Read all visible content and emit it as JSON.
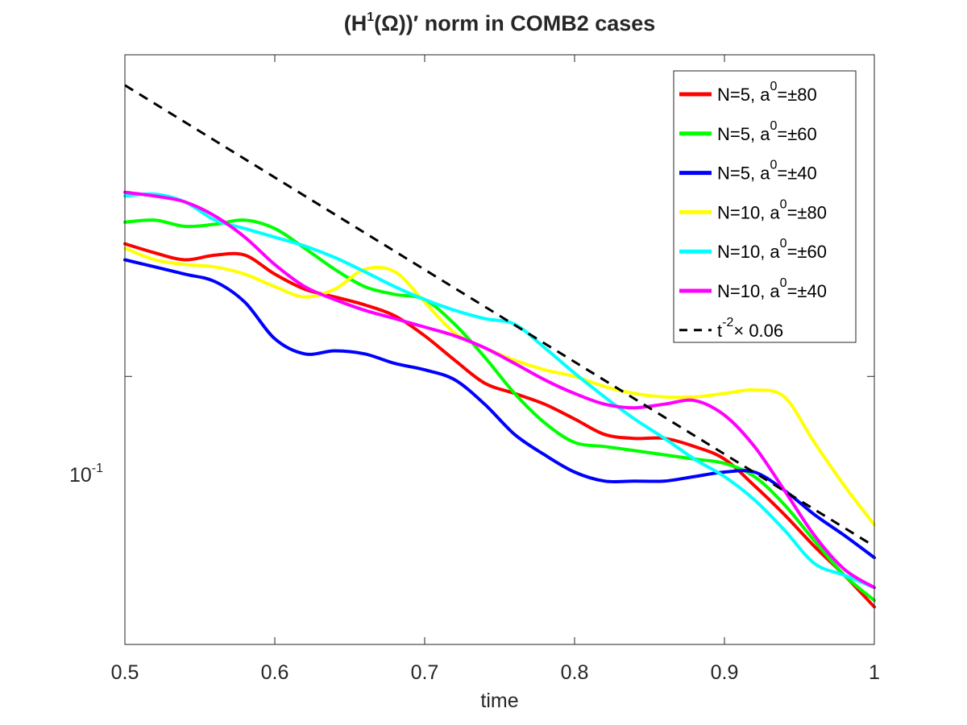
{
  "chart_data": {
    "type": "line",
    "title_parts": {
      "open": "(H",
      "sup": "1",
      "rest": "(Ω))′ norm in COMB2 cases"
    },
    "xlabel": "time",
    "ylabel": "",
    "xlim": [
      0.5,
      1.0
    ],
    "ylim_log10": [
      -1.35,
      -0.58
    ],
    "yscale": "log",
    "x_ticks": [
      0.5,
      0.6,
      0.7,
      0.8,
      0.9,
      1.0
    ],
    "x_tick_labels": [
      "0.5",
      "0.6",
      "0.7",
      "0.8",
      "0.9",
      "1"
    ],
    "y_ticks": [
      0.1
    ],
    "y_tick_label": {
      "base": "10",
      "exp": "-1"
    },
    "legend_position": "top-right",
    "x": [
      0.5,
      0.52,
      0.54,
      0.56,
      0.58,
      0.6,
      0.62,
      0.64,
      0.66,
      0.68,
      0.7,
      0.72,
      0.74,
      0.76,
      0.78,
      0.8,
      0.82,
      0.84,
      0.86,
      0.88,
      0.9,
      0.92,
      0.94,
      0.96,
      0.98,
      1.0
    ],
    "series": [
      {
        "name": "N=5, a⁰=±80",
        "label_pre": "N=5, a",
        "label_sup": "0",
        "label_post": "=±80",
        "color": "#ff0000",
        "style": "solid",
        "values": [
          0.149,
          0.145,
          0.142,
          0.144,
          0.144,
          0.136,
          0.13,
          0.127,
          0.124,
          0.12,
          0.113,
          0.105,
          0.098,
          0.095,
          0.092,
          0.088,
          0.084,
          0.083,
          0.083,
          0.081,
          0.078,
          0.072,
          0.066,
          0.06,
          0.055,
          0.05
        ]
      },
      {
        "name": "N=5, a⁰=±60",
        "label_pre": "N=5, a",
        "label_sup": "0",
        "label_post": "=±60",
        "color": "#00ff00",
        "style": "solid",
        "values": [
          0.159,
          0.16,
          0.157,
          0.158,
          0.16,
          0.156,
          0.147,
          0.138,
          0.131,
          0.128,
          0.126,
          0.117,
          0.106,
          0.095,
          0.087,
          0.082,
          0.081,
          0.08,
          0.079,
          0.078,
          0.077,
          0.074,
          0.068,
          0.061,
          0.055,
          0.051
        ]
      },
      {
        "name": "N=5, a⁰=±40",
        "label_pre": "N=5, a",
        "label_sup": "0",
        "label_post": "=±40",
        "color": "#0000ff",
        "style": "solid",
        "values": [
          0.142,
          0.139,
          0.136,
          0.133,
          0.125,
          0.112,
          0.107,
          0.108,
          0.107,
          0.104,
          0.102,
          0.099,
          0.092,
          0.084,
          0.079,
          0.075,
          0.073,
          0.073,
          0.073,
          0.074,
          0.075,
          0.075,
          0.071,
          0.066,
          0.062,
          0.058
        ]
      },
      {
        "name": "N=10, a⁰=±80",
        "label_pre": "N=10, a",
        "label_sup": "0",
        "label_post": "=±80",
        "color": "#ffff00",
        "style": "solid",
        "values": [
          0.147,
          0.142,
          0.14,
          0.139,
          0.136,
          0.131,
          0.127,
          0.13,
          0.138,
          0.137,
          0.125,
          0.114,
          0.109,
          0.105,
          0.102,
          0.1,
          0.097,
          0.095,
          0.094,
          0.094,
          0.095,
          0.096,
          0.094,
          0.082,
          0.072,
          0.064
        ]
      },
      {
        "name": "N=10, a⁰=±60",
        "label_pre": "N=10, a",
        "label_sup": "0",
        "label_post": "=±60",
        "color": "#00ffff",
        "style": "solid",
        "values": [
          0.172,
          0.173,
          0.169,
          0.16,
          0.156,
          0.152,
          0.148,
          0.143,
          0.137,
          0.131,
          0.126,
          0.122,
          0.119,
          0.117,
          0.109,
          0.101,
          0.094,
          0.088,
          0.083,
          0.078,
          0.074,
          0.069,
          0.063,
          0.057,
          0.055,
          0.053
        ]
      },
      {
        "name": "N=10, a⁰=±40",
        "label_pre": "N=10, a",
        "label_sup": "0",
        "label_post": "=±40",
        "color": "#ff00ff",
        "style": "solid",
        "values": [
          0.174,
          0.172,
          0.169,
          0.162,
          0.152,
          0.14,
          0.131,
          0.126,
          0.122,
          0.119,
          0.116,
          0.113,
          0.109,
          0.104,
          0.099,
          0.095,
          0.092,
          0.091,
          0.092,
          0.093,
          0.089,
          0.081,
          0.071,
          0.062,
          0.056,
          0.053
        ]
      },
      {
        "name": "t⁻²× 0.06",
        "label_pre": "t",
        "label_sup": "-2",
        "label_post": "× 0.06",
        "color": "#000000",
        "style": "dashed",
        "formula": "0.06 * t^-2",
        "values": [
          0.24,
          0.2219,
          0.2058,
          0.1913,
          0.1784,
          0.1667,
          0.1561,
          0.1465,
          0.1377,
          0.1298,
          0.1224,
          0.1157,
          0.1096,
          0.1039,
          0.0986,
          0.0938,
          0.0892,
          0.085,
          0.0811,
          0.0775,
          0.0741,
          0.0709,
          0.0679,
          0.0651,
          0.0625,
          0.06
        ]
      }
    ]
  }
}
